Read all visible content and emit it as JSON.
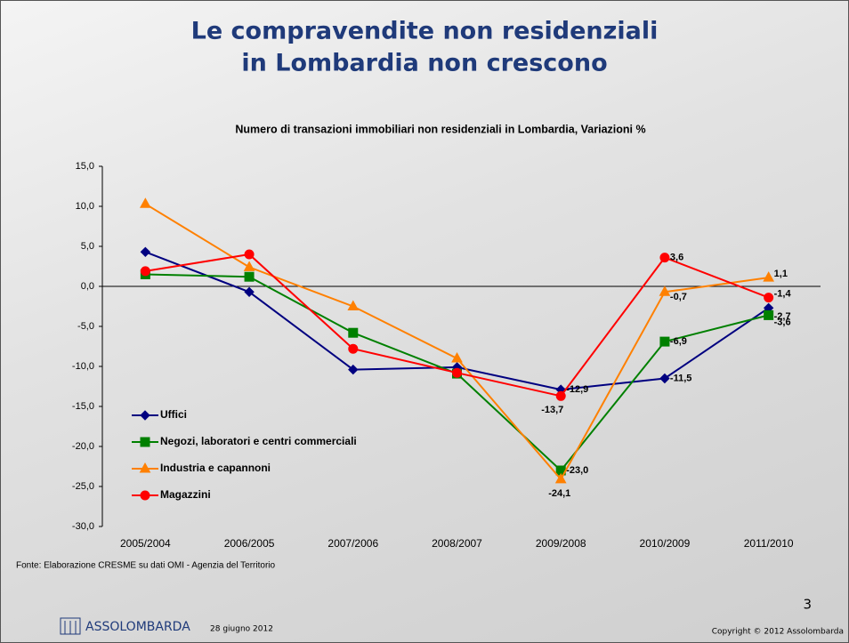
{
  "slide": {
    "title": [
      "Le compravendite non residenziali",
      "in Lombardia non crescono"
    ],
    "source": "Fonte: Elaborazione CRESME su dati OMI - Agenzia del Territorio",
    "brand": "ASSOLOMBARDA",
    "date": "28 giugno 2012",
    "page_number": "3",
    "copyright": "Copyright © 2012 Assolombarda"
  },
  "chart_data": {
    "type": "line",
    "title": "Numero di transazioni immobiliari non residenziali in Lombardia, Variazioni %",
    "categories": [
      "2005/2004",
      "2006/2005",
      "2007/2006",
      "2008/2007",
      "2009/2008",
      "2010/2009",
      "2011/2010"
    ],
    "ylim": [
      -30,
      15
    ],
    "yticks": [
      {
        "value": -30,
        "label": "-30,0"
      },
      {
        "value": -25,
        "label": "-25,0"
      },
      {
        "value": -20,
        "label": "-20,0"
      },
      {
        "value": -15,
        "label": "-15,0"
      },
      {
        "value": -10,
        "label": "-10,0"
      },
      {
        "value": -5,
        "label": "-5,0"
      },
      {
        "value": 0,
        "label": "0,0"
      },
      {
        "value": 5,
        "label": "5,0"
      },
      {
        "value": 10,
        "label": "10,0"
      },
      {
        "value": 15,
        "label": "15,0"
      }
    ],
    "legend": "lower left",
    "series": [
      {
        "name": "Uffici",
        "color": "#000080",
        "marker": "diamond",
        "values": [
          4.3,
          -0.7,
          -10.4,
          -10.1,
          -12.9,
          -11.5,
          -2.7
        ],
        "value_labels": [
          null,
          null,
          null,
          null,
          "-12,9",
          "-11,5",
          "-2,7"
        ]
      },
      {
        "name": "Negozi, laboratori e centri commerciali",
        "color": "#008000",
        "marker": "square",
        "values": [
          1.5,
          1.2,
          -5.8,
          -10.9,
          -23.0,
          -6.9,
          -3.6
        ],
        "value_labels": [
          null,
          null,
          null,
          null,
          "-23,0",
          "-6,9",
          "-3,6"
        ]
      },
      {
        "name": "Industria e capannoni",
        "color": "#ff8000",
        "marker": "triangle",
        "values": [
          10.3,
          2.4,
          -2.5,
          -9.0,
          -24.1,
          -0.7,
          1.1
        ],
        "value_labels": [
          null,
          null,
          null,
          null,
          "-24,1",
          "-0,7",
          "1,1"
        ]
      },
      {
        "name": "Magazzini",
        "color": "#ff0000",
        "marker": "circle",
        "values": [
          1.9,
          4.0,
          -7.8,
          -10.8,
          -13.7,
          3.6,
          -1.4
        ],
        "value_labels": [
          null,
          null,
          null,
          null,
          "-13,7",
          "3,6",
          "-1,4"
        ]
      }
    ]
  }
}
